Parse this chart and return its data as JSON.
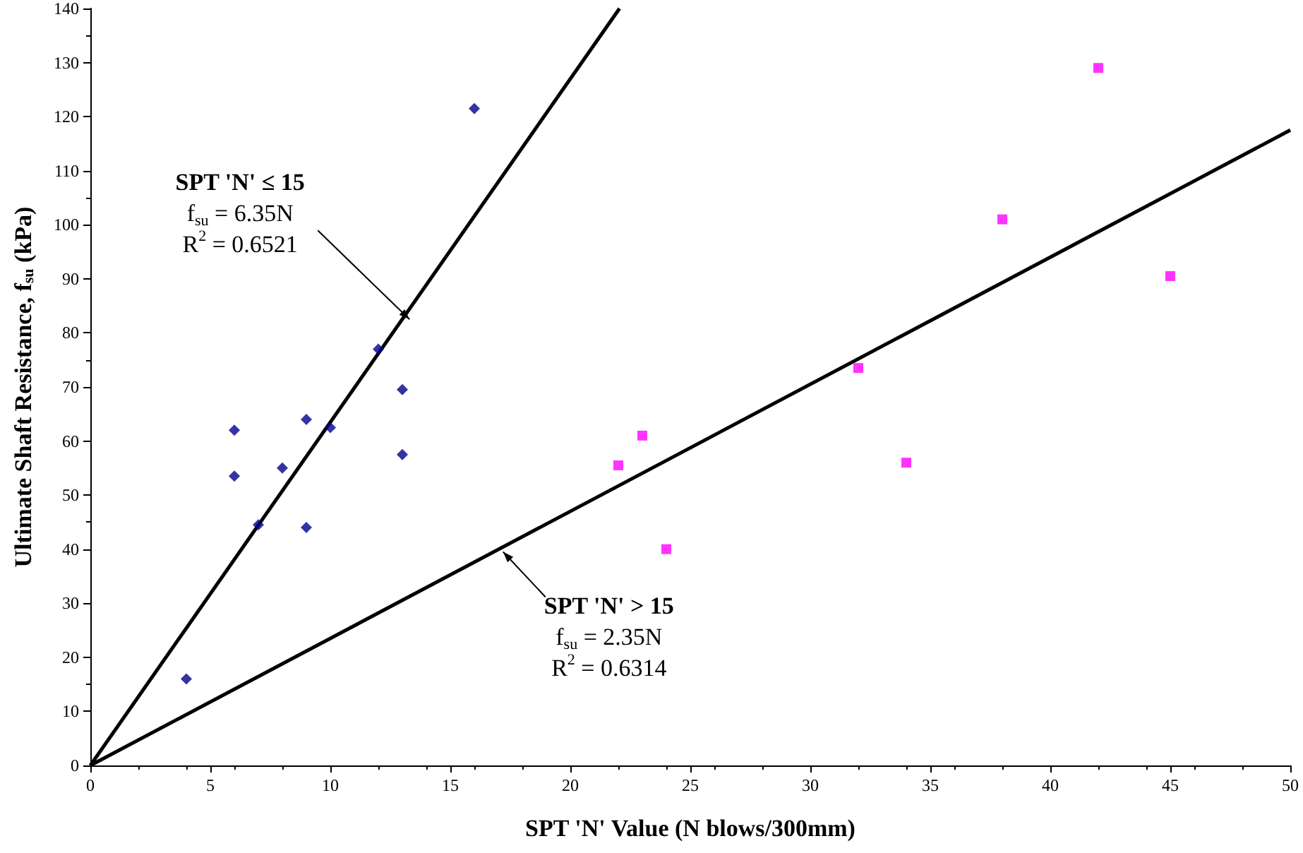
{
  "chart_data": {
    "type": "scatter",
    "xlabel": "SPT 'N' Value (N blows/300mm)",
    "ylabel": "Ultimate Shaft Resistance, f$_{su}$ (kPa)",
    "series": [
      {
        "type": "scatter",
        "marker": "diamond",
        "color": "#00008b",
        "x": [
          4,
          6,
          6,
          7,
          8,
          9,
          9,
          10,
          12,
          13,
          13,
          16
        ],
        "values": [
          16,
          62,
          53.5,
          44.5,
          55,
          64,
          44,
          62.5,
          77,
          69.5,
          57.5,
          121.5
        ]
      },
      {
        "type": "scatter",
        "marker": "square",
        "color": "#ff00ff",
        "x": [
          22,
          23,
          24,
          32,
          34,
          38,
          42,
          45
        ],
        "values": [
          55.5,
          61,
          40,
          73.5,
          56,
          101,
          129,
          90.5
        ]
      },
      {
        "type": "line",
        "marker": "none",
        "color": "#000000",
        "x": [
          0,
          22.05
        ],
        "values": [
          0,
          140
        ]
      },
      {
        "type": "line",
        "marker": "none",
        "color": "#000000",
        "x": [
          0,
          50
        ],
        "values": [
          0,
          117.5
        ]
      }
    ],
    "annotations": [
      {
        "text": "SPT 'N' ≤ 15\nf$_{su}$ = 6.35N\nR$^{2}$ = 0.6521",
        "x": 13.3,
        "y": 82.5
      },
      {
        "text": "SPT 'N' > 15\nf$_{su}$ = 2.35N\nR$^{2}$ = 0.6314",
        "x": 17.2,
        "y": 39.5
      }
    ],
    "xlim": [
      0,
      50
    ],
    "xticks": [
      0,
      5,
      10,
      15,
      20,
      25,
      30,
      35,
      40,
      45,
      50
    ],
    "ylim": [
      0,
      140
    ],
    "yticks": [
      0,
      10,
      20,
      30,
      40,
      50,
      60,
      70,
      80,
      90,
      100,
      110,
      120,
      130,
      140
    ],
    "grid": false
  }
}
